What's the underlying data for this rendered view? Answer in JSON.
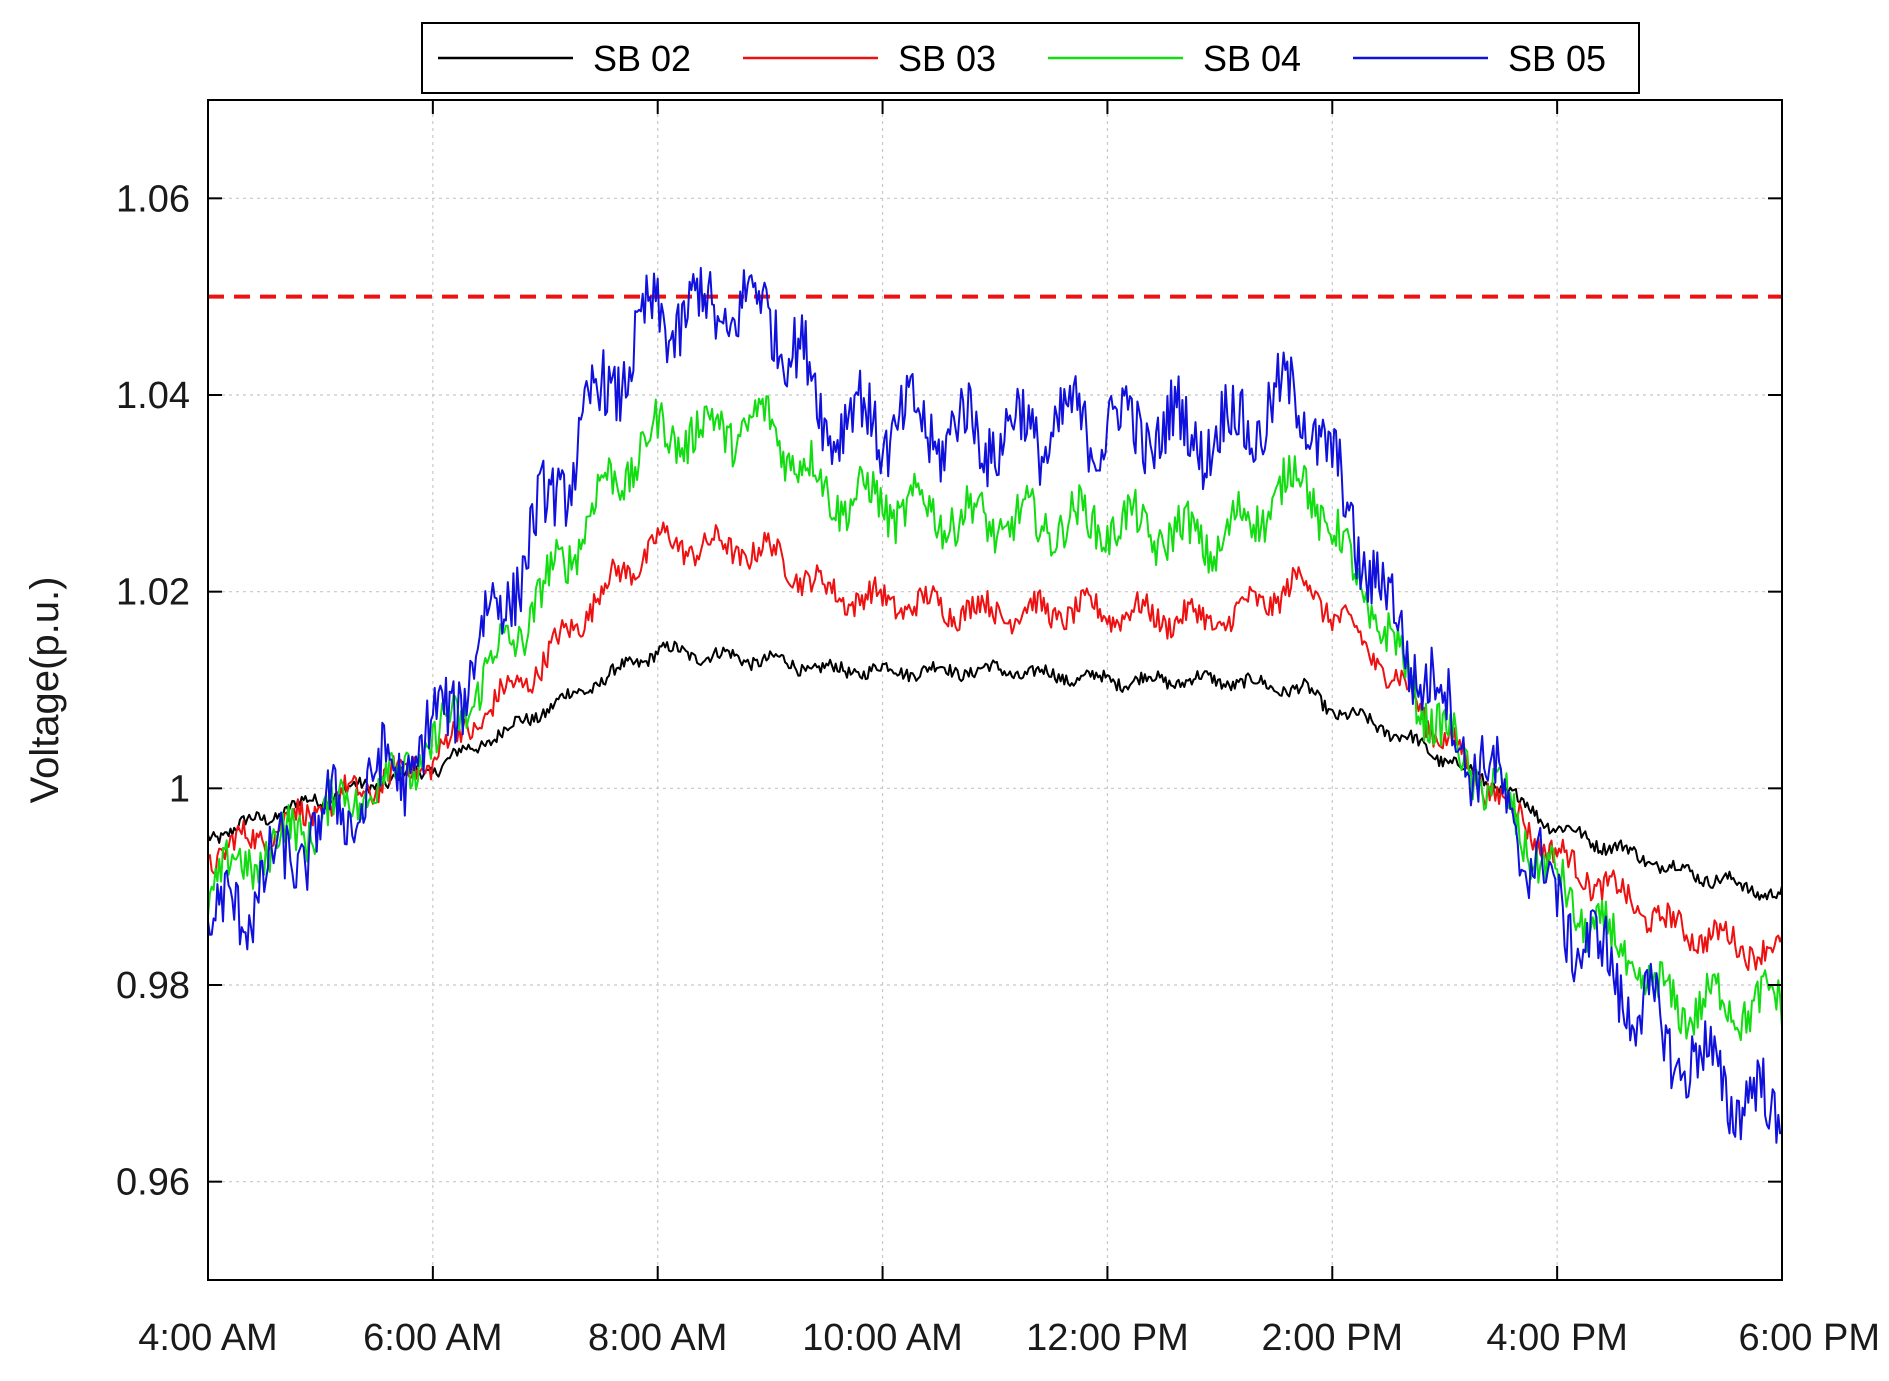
{
  "chart_data": {
    "type": "line",
    "title": "",
    "xlabel": "",
    "ylabel": "Voltage(p.u.)",
    "xlim": [
      "4:00 AM",
      "6:00 PM"
    ],
    "ylim": [
      0.95,
      1.07
    ],
    "grid": true,
    "legend_position": "top-center",
    "x_ticks": [
      "4:00 AM",
      "6:00 AM",
      "8:00 AM",
      "10:00 AM",
      "12:00 PM",
      "2:00 PM",
      "4:00 PM",
      "6:00 PM"
    ],
    "y_ticks": [
      "0.96",
      "0.98",
      "1",
      "1.02",
      "1.04",
      "1.06"
    ],
    "reference_line": {
      "y": 1.05,
      "color": "#ee1111",
      "style": "dashed"
    },
    "x": [
      "4:00 AM",
      "5:00 AM",
      "6:00 AM",
      "7:00 AM",
      "7:30 AM",
      "8:00 AM",
      "9:00 AM",
      "9:30 AM",
      "10:00 AM",
      "11:00 AM",
      "12:00 PM",
      "1:00 PM",
      "1:45 PM",
      "2:00 PM",
      "2:30 PM",
      "3:00 PM",
      "3:30 PM",
      "4:00 PM",
      "5:00 PM",
      "6:00 PM"
    ],
    "series": [
      {
        "name": "SB 02",
        "color": "#000000",
        "values": [
          0.995,
          0.999,
          1.002,
          1.008,
          1.011,
          1.014,
          1.013,
          1.012,
          1.012,
          1.012,
          1.011,
          1.011,
          1.01,
          1.008,
          1.006,
          1.003,
          1.0,
          0.996,
          0.992,
          0.989
        ]
      },
      {
        "name": "SB 03",
        "color": "#ee1111",
        "values": [
          0.993,
          0.998,
          1.003,
          1.013,
          1.02,
          1.025,
          1.024,
          1.02,
          1.019,
          1.018,
          1.018,
          1.017,
          1.021,
          1.018,
          1.012,
          1.005,
          0.999,
          0.993,
          0.986,
          0.983
        ]
      },
      {
        "name": "SB 04",
        "color": "#11dd11",
        "values": [
          0.99,
          0.997,
          1.004,
          1.02,
          1.03,
          1.036,
          1.037,
          1.03,
          1.029,
          1.027,
          1.027,
          1.025,
          1.032,
          1.026,
          1.015,
          1.005,
          0.999,
          0.99,
          0.978,
          0.978
        ]
      },
      {
        "name": "SB 05",
        "color": "#1111dd",
        "values": [
          0.985,
          0.996,
          1.005,
          1.028,
          1.04,
          1.048,
          1.049,
          1.038,
          1.037,
          1.036,
          1.037,
          1.036,
          1.04,
          1.032,
          1.018,
          1.008,
          0.999,
          0.988,
          0.974,
          0.966
        ]
      }
    ]
  }
}
